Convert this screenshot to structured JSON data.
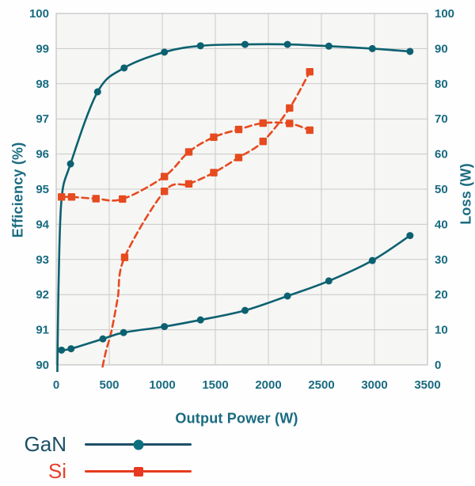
{
  "chart_data": {
    "type": "line",
    "title": "",
    "xlabel": "Output Power (W)",
    "ylabel_left": "Efficiency (%)",
    "ylabel_right": "Loss (W)",
    "xlim": [
      0,
      3500
    ],
    "ylim_left": [
      90,
      100
    ],
    "ylim_right": [
      0,
      100
    ],
    "x_ticks": [
      0,
      500,
      1000,
      1500,
      2000,
      2500,
      3000,
      3500
    ],
    "y_ticks_left": [
      90,
      91,
      92,
      93,
      94,
      95,
      96,
      97,
      98,
      99,
      100
    ],
    "y_ticks_right": [
      0,
      10,
      20,
      30,
      40,
      50,
      60,
      70,
      80,
      90,
      100
    ],
    "grid": true,
    "colors": {
      "axis_text": "#196b80",
      "grid": "#c9c9c9",
      "border": "#c2c2c2",
      "plot_bg": "#f6f6f4",
      "gan": "#0c6170",
      "si": "#e64a1f"
    },
    "series": [
      {
        "name": "Si efficiency",
        "group": "Si",
        "axis": "left",
        "unit": "%",
        "color": "#e64a1f",
        "line": "dashed",
        "marker": "square",
        "lead_points": [],
        "points": [
          [
            50,
            94.78
          ],
          [
            145,
            94.78
          ],
          [
            375,
            94.73
          ],
          [
            625,
            94.72
          ],
          [
            1020,
            95.36
          ],
          [
            1250,
            96.06
          ],
          [
            1485,
            96.48
          ],
          [
            1720,
            96.7
          ],
          [
            1950,
            96.88
          ],
          [
            2200,
            96.87
          ],
          [
            2390,
            96.68
          ]
        ]
      },
      {
        "name": "Si loss",
        "group": "Si",
        "axis": "right",
        "unit": "W",
        "color": "#e64a1f",
        "line": "dashed",
        "marker": "square",
        "lead_points": [
          [
            437,
            -0.5
          ],
          [
            470,
            4
          ],
          [
            520,
            9.5
          ],
          [
            580,
            19
          ]
        ],
        "points": [
          [
            645,
            30.6
          ],
          [
            1020,
            49.4
          ],
          [
            1250,
            51.5
          ],
          [
            1485,
            54.7
          ],
          [
            1720,
            59.0
          ],
          [
            1950,
            63.6
          ],
          [
            2200,
            73.1
          ],
          [
            2390,
            83.4
          ]
        ]
      },
      {
        "name": "GaN efficiency",
        "group": "GaN",
        "axis": "left",
        "unit": "%",
        "color": "#0c6170",
        "line": "solid",
        "marker": "circle",
        "lead_points": [
          [
            10,
            89.5
          ],
          [
            22,
            92.2
          ],
          [
            50,
            94.7
          ]
        ],
        "points": [
          [
            135,
            95.72
          ],
          [
            390,
            97.77
          ],
          [
            640,
            98.45
          ],
          [
            1020,
            98.9
          ],
          [
            1360,
            99.08
          ],
          [
            1780,
            99.12
          ],
          [
            2180,
            99.12
          ],
          [
            2570,
            99.07
          ],
          [
            2980,
            99.0
          ],
          [
            3335,
            98.92
          ]
        ]
      },
      {
        "name": "GaN loss",
        "group": "GaN",
        "axis": "right",
        "unit": "W",
        "color": "#0c6170",
        "line": "solid",
        "marker": "circle",
        "lead_points": [],
        "points": [
          [
            50,
            4.2
          ],
          [
            140,
            4.6
          ],
          [
            440,
            7.4
          ],
          [
            635,
            9.2
          ],
          [
            1020,
            10.9
          ],
          [
            1360,
            12.8
          ],
          [
            1780,
            15.5
          ],
          [
            2180,
            19.6
          ],
          [
            2570,
            23.9
          ],
          [
            2980,
            29.7
          ],
          [
            3335,
            36.8
          ]
        ]
      }
    ],
    "legend_position": "bottom-left",
    "legend": [
      {
        "label": "GaN",
        "text_color": "#1d4f66",
        "line_color": "#1d4f66",
        "marker": "circle",
        "marker_color": "#0d7080"
      },
      {
        "label": "Si",
        "text_color": "#e6402a",
        "line_color": "#e63c1e",
        "marker": "square",
        "marker_color": "#e6391f"
      }
    ]
  }
}
